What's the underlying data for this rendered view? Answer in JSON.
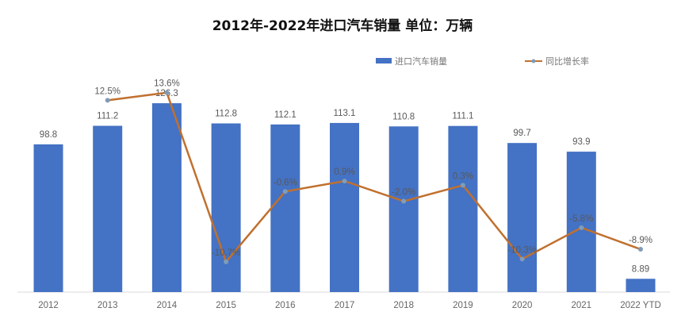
{
  "chart_data": {
    "type": "bar+line",
    "title": "2012年-2022年进口汽车销量  单位：万辆",
    "categories": [
      "2012",
      "2013",
      "2014",
      "2015",
      "2016",
      "2017",
      "2018",
      "2019",
      "2020",
      "2021",
      "2022 YTD"
    ],
    "series": [
      {
        "name": "进口汽车销量",
        "type": "bar",
        "color": "#4472C4",
        "values": [
          98.8,
          111.2,
          126.3,
          112.8,
          112.1,
          113.1,
          110.8,
          111.1,
          99.7,
          93.9,
          8.89
        ],
        "labels": [
          "98.8",
          "111.2",
          "126.3",
          "112.8",
          "112.1",
          "113.1",
          "110.8",
          "111.1",
          "99.7",
          "93.9",
          "8.89"
        ]
      },
      {
        "name": "同比增长率",
        "type": "line",
        "color": "#C0702E",
        "marker_color": "#7F9DB9",
        "values": [
          null,
          12.5,
          13.6,
          -10.7,
          -0.6,
          0.9,
          -2.0,
          0.3,
          -10.3,
          -5.8,
          -8.9
        ],
        "labels": [
          "",
          "12.5%",
          "13.6%",
          "-10.7%",
          "-0.6%",
          "0.9%",
          "-2.0%",
          "0.3%",
          "-10.3%",
          "-5.8%",
          "-8.9%"
        ]
      }
    ],
    "legend_position": "top-right",
    "grid": false
  }
}
